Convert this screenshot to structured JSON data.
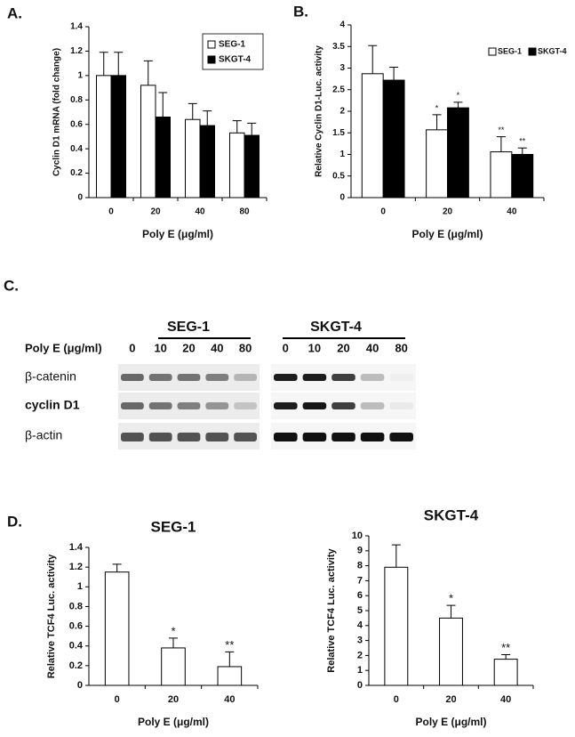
{
  "panel_labels": [
    "A.",
    "B.",
    "C.",
    "D."
  ],
  "chart_data": [
    {
      "type": "bar",
      "ylabel": "Cyclin D1 mRNA (fold change)",
      "xlabel": "Poly E (μg/ml)",
      "categories": [
        "0",
        "20",
        "40",
        "80"
      ],
      "ylim": [
        0,
        1.4
      ],
      "yticks": [
        0,
        0.2,
        0.4,
        0.6,
        0.8,
        1,
        1.2,
        1.4
      ],
      "legend": "upper right",
      "series": [
        {
          "name": "SEG-1",
          "color": "#ffffff",
          "values": [
            1.0,
            0.92,
            0.64,
            0.53
          ],
          "errors": [
            0.19,
            0.2,
            0.13,
            0.1
          ]
        },
        {
          "name": "SKGT-4",
          "color": "#000000",
          "values": [
            1.0,
            0.66,
            0.59,
            0.51
          ],
          "errors": [
            0.19,
            0.2,
            0.12,
            0.1
          ]
        }
      ]
    },
    {
      "type": "bar",
      "ylabel": "Relative Cyclin D1-Luc. activity",
      "xlabel": "Poly E (μg/ml)",
      "categories": [
        "0",
        "20",
        "40"
      ],
      "ylim": [
        0,
        4
      ],
      "yticks": [
        0,
        0.5,
        1,
        1.5,
        2,
        2.5,
        3,
        3.5,
        4
      ],
      "legend": "upper right",
      "series": [
        {
          "name": "SEG-1",
          "color": "#ffffff",
          "values": [
            2.87,
            1.57,
            1.06
          ],
          "errors": [
            0.65,
            0.35,
            0.35
          ],
          "significance": [
            null,
            "*",
            "**"
          ]
        },
        {
          "name": "SKGT-4",
          "color": "#000000",
          "values": [
            2.72,
            2.08,
            1.0
          ],
          "errors": [
            0.3,
            0.13,
            0.15
          ],
          "significance": [
            null,
            "*",
            "**"
          ]
        }
      ]
    },
    {
      "type": "bar",
      "title": "SEG-1",
      "ylabel": "Relative TCF4 Luc. activity",
      "xlabel": "Poly E (μg/ml)",
      "categories": [
        "0",
        "20",
        "40"
      ],
      "ylim": [
        0,
        1.4
      ],
      "yticks": [
        0,
        0.2,
        0.4,
        0.6,
        0.8,
        1,
        1.2,
        1.4
      ],
      "series": [
        {
          "color": "#ffffff",
          "values": [
            1.15,
            0.38,
            0.19
          ],
          "errors": [
            0.08,
            0.1,
            0.15
          ],
          "significance": [
            null,
            "*",
            "**"
          ]
        }
      ]
    },
    {
      "type": "bar",
      "title": "SKGT-4",
      "ylabel": "Relative TCF4 Luc. activity",
      "xlabel": "Poly E (μg/ml)",
      "categories": [
        "0",
        "20",
        "40"
      ],
      "ylim": [
        0,
        10
      ],
      "yticks": [
        0,
        1,
        2,
        3,
        4,
        5,
        6,
        7,
        8,
        9,
        10
      ],
      "series": [
        {
          "color": "#ffffff",
          "values": [
            7.9,
            4.5,
            1.75
          ],
          "errors": [
            1.5,
            0.85,
            0.3
          ],
          "significance": [
            null,
            "*",
            "**"
          ]
        }
      ]
    }
  ],
  "blot": {
    "groups": [
      "SEG-1",
      "SKGT-4"
    ],
    "lane_label": "Poly E (μg/ml)",
    "lanes": [
      "0",
      "10",
      "20",
      "40",
      "80"
    ],
    "rows": [
      "β-catenin",
      "cyclin D1",
      "β-actin"
    ]
  }
}
